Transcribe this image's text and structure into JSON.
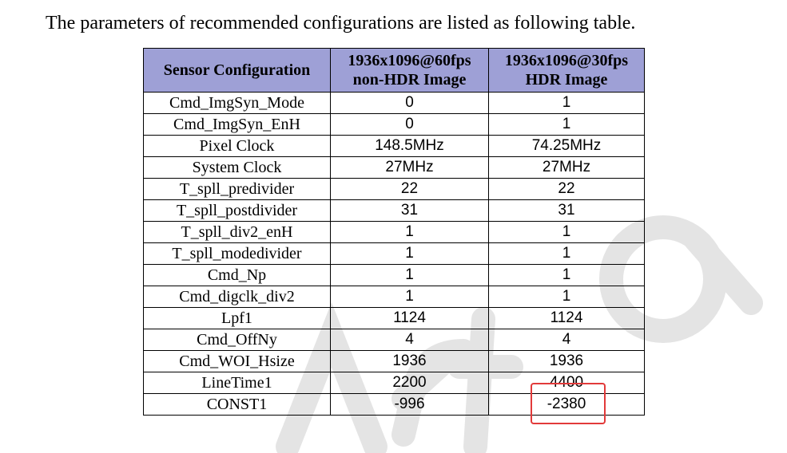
{
  "intro_text": "The parameters of recommended configurations are listed as following table.",
  "table": {
    "headers": {
      "col1": "Sensor Configuration",
      "col2_line1": "1936x1096@60fps",
      "col2_line2": "non-HDR Image",
      "col3_line1": "1936x1096@30fps",
      "col3_line2": "HDR Image"
    },
    "rows": [
      [
        "Cmd_ImgSyn_Mode",
        "0",
        "1"
      ],
      [
        "Cmd_ImgSyn_EnH",
        "0",
        "1"
      ],
      [
        "Pixel Clock",
        "148.5MHz",
        "74.25MHz"
      ],
      [
        "System Clock",
        "27MHz",
        "27MHz"
      ],
      [
        "T_spll_predivider",
        "22",
        "22"
      ],
      [
        "T_spll_postdivider",
        "31",
        "31"
      ],
      [
        "T_spll_div2_enH",
        "1",
        "1"
      ],
      [
        "T_spll_modedivider",
        "1",
        "1"
      ],
      [
        "Cmd_Np",
        "1",
        "1"
      ],
      [
        "Cmd_digclk_div2",
        "1",
        "1"
      ],
      [
        "Lpf1",
        "1124",
        "1124"
      ],
      [
        "Cmd_OffNy",
        "4",
        "4"
      ],
      [
        "Cmd_WOI_Hsize",
        "1936",
        "1936"
      ],
      [
        "LineTime1",
        "2200",
        "4400"
      ],
      [
        "CONST1",
        "-996",
        "-2380"
      ]
    ]
  },
  "colors": {
    "header_bg": "#9ea0d6",
    "highlight_border": "#e23a3a",
    "watermark": "#dcdcdc"
  }
}
